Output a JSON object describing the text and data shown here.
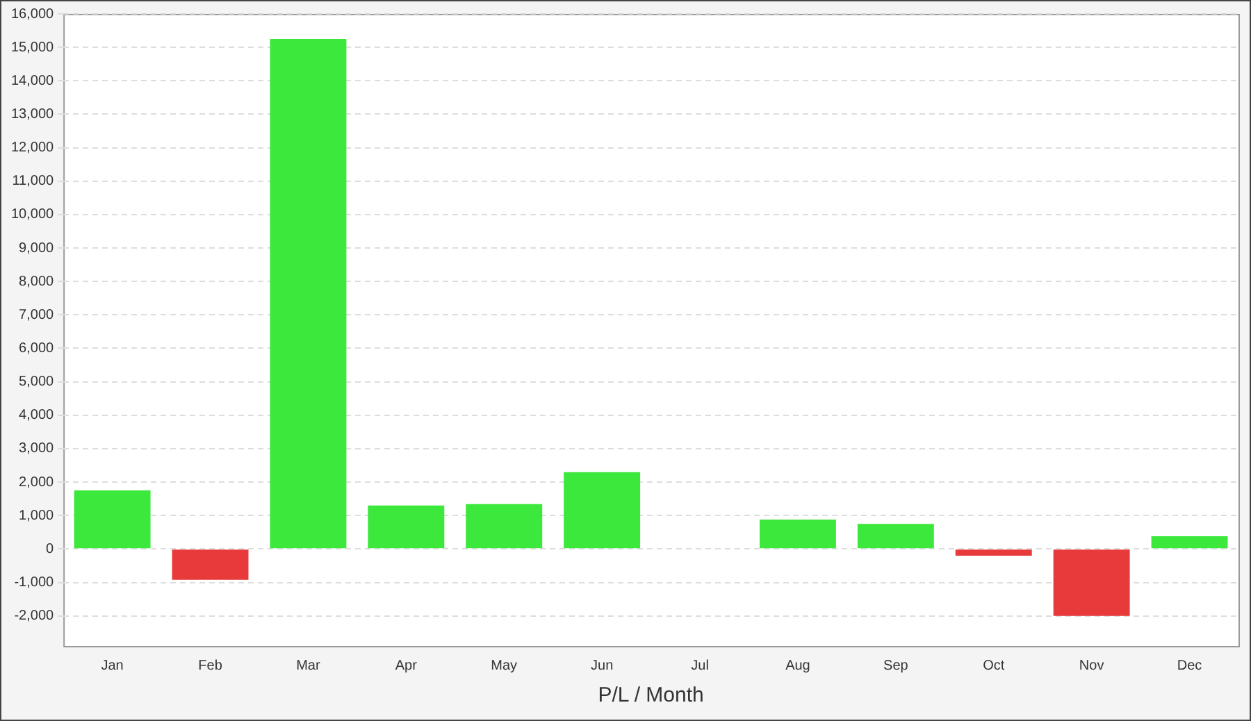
{
  "chart_data": {
    "type": "bar",
    "xlabel": "P/L / Month",
    "categories": [
      "Jan",
      "Feb",
      "Mar",
      "Apr",
      "May",
      "Jun",
      "Jul",
      "Aug",
      "Sep",
      "Oct",
      "Nov",
      "Dec"
    ],
    "values": [
      1750,
      -920,
      15250,
      1300,
      1340,
      2300,
      0,
      880,
      750,
      -200,
      -2000,
      380
    ],
    "colors": [
      "#3de83d",
      "#e83a3a",
      "#3de83d",
      "#3de83d",
      "#3de83d",
      "#3de83d",
      "#3de83d",
      "#3de83d",
      "#3de83d",
      "#e83a3a",
      "#e83a3a",
      "#3de83d"
    ],
    "ylim": [
      -2900,
      16000
    ],
    "yticks": [
      {
        "value": -2000,
        "label": "-2,000"
      },
      {
        "value": -1000,
        "label": "-1,000"
      },
      0,
      {
        "value": 1000,
        "label": "1,000"
      },
      {
        "value": 2000,
        "label": "2,000"
      },
      {
        "value": 3000,
        "label": "3,000"
      },
      {
        "value": 4000,
        "label": "4,000"
      },
      {
        "value": 5000,
        "label": "5,000"
      },
      {
        "value": 6000,
        "label": "6,000"
      },
      {
        "value": 7000,
        "label": "7,000"
      },
      {
        "value": 8000,
        "label": "8,000"
      },
      {
        "value": 9000,
        "label": "9,000"
      },
      {
        "value": 10000,
        "label": "10,000"
      },
      {
        "value": 11000,
        "label": "11,000"
      },
      {
        "value": 12000,
        "label": "12,000"
      },
      {
        "value": 13000,
        "label": "13,000"
      },
      {
        "value": 14000,
        "label": "14,000"
      },
      {
        "value": 15000,
        "label": "15,000"
      },
      {
        "value": 16000,
        "label": "16,000"
      }
    ],
    "grid": "y",
    "legend": false
  }
}
